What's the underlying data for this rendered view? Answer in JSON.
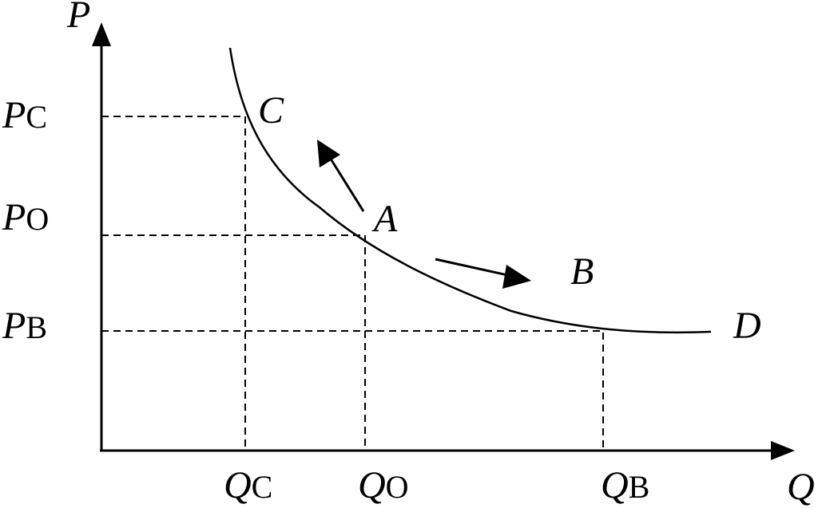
{
  "axes": {
    "y_label": "P",
    "x_label": "Q"
  },
  "prices": [
    {
      "main": "P",
      "sub": "C"
    },
    {
      "main": "P",
      "sub": "O"
    },
    {
      "main": "P",
      "sub": "B"
    }
  ],
  "quantities": [
    {
      "main": "Q",
      "sub": "C"
    },
    {
      "main": "Q",
      "sub": "O"
    },
    {
      "main": "Q",
      "sub": "B"
    }
  ],
  "points": {
    "c": "C",
    "a": "A",
    "b": "B",
    "d": "D"
  }
}
